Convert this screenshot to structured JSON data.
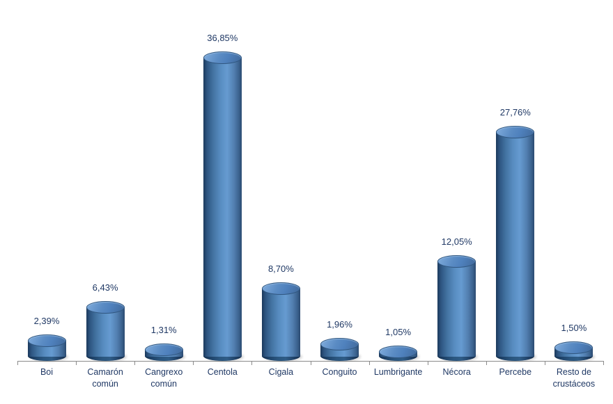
{
  "chart_data": {
    "type": "bar",
    "style": "3d-cylinder-vertical",
    "title": "",
    "xlabel": "",
    "ylabel": "",
    "unit": "%",
    "ylim": [
      0,
      40
    ],
    "grid": false,
    "legend": null,
    "y_axis_visible": false,
    "categories": [
      "Boi",
      "Camarón común",
      "Cangrexo común",
      "Centola",
      "Cigala",
      "Conguito",
      "Lumbrigante",
      "Nécora",
      "Percebe",
      "Resto de crustáceos"
    ],
    "values": [
      2.39,
      6.43,
      1.31,
      36.85,
      8.7,
      1.96,
      1.05,
      12.05,
      27.76,
      1.5
    ],
    "data_labels": [
      "2,39%",
      "6,43%",
      "1,31%",
      "36,85%",
      "8,70%",
      "1,96%",
      "1,05%",
      "12,05%",
      "27,76%",
      "1,50%"
    ],
    "colors": {
      "bar_fill": "#4F81BD",
      "bar_edge_dark": "#1C3A5C",
      "bar_highlight": "#669BD1",
      "label_text": "#1F3864",
      "axis_line": "#8A8A8A",
      "background": "#FFFFFF"
    }
  }
}
